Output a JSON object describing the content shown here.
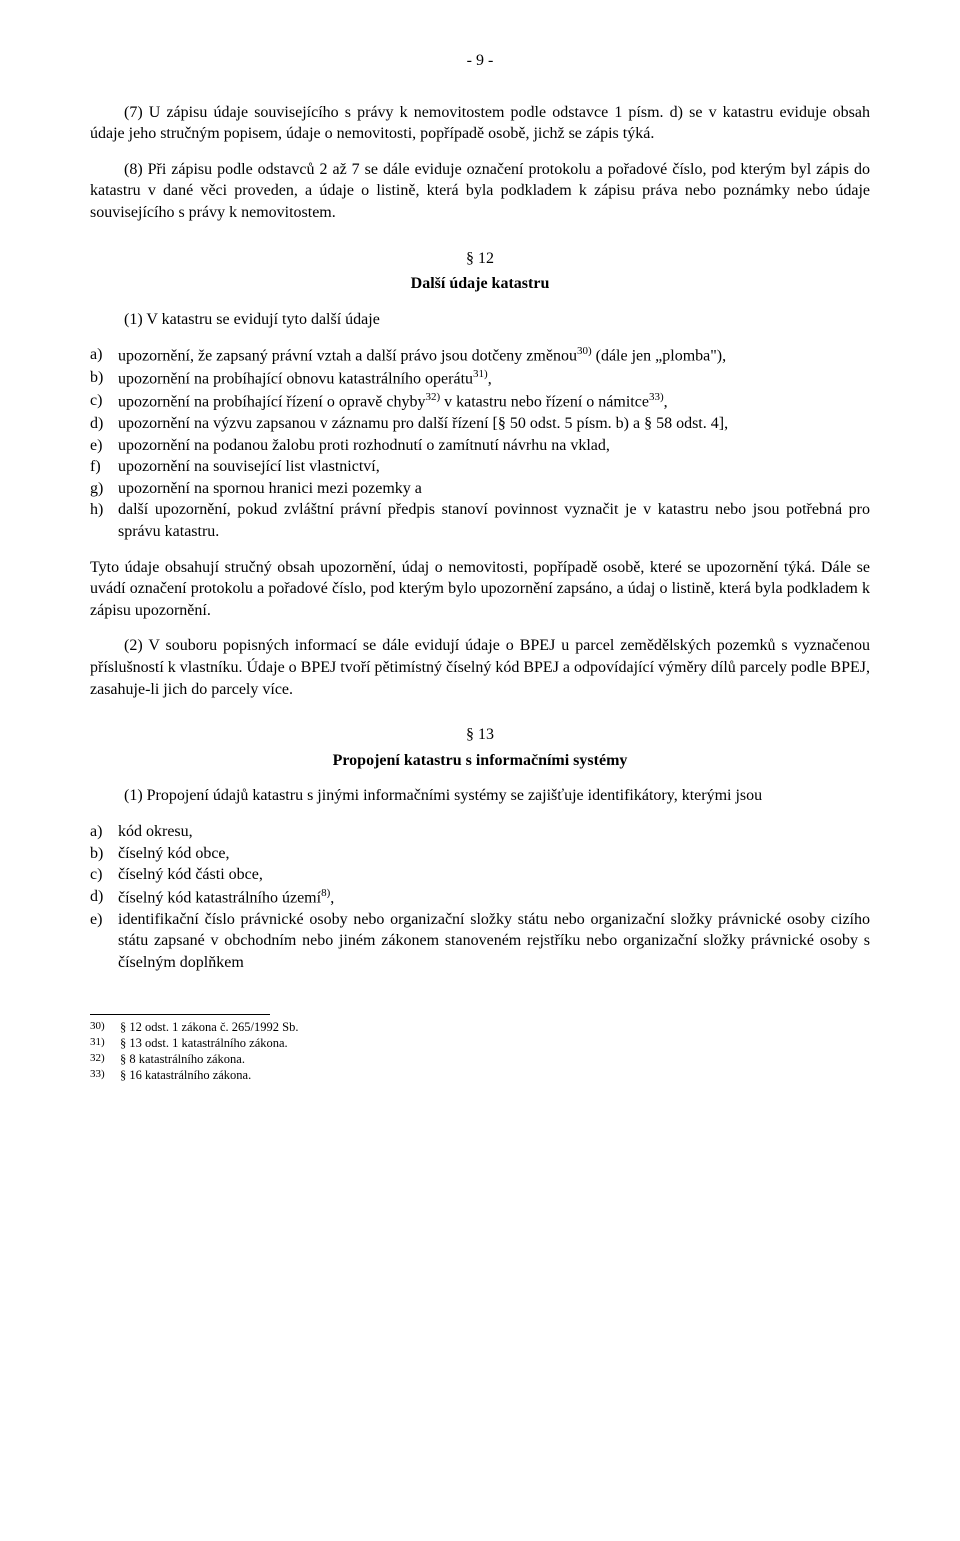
{
  "pageNumber": "- 9 -",
  "para7": "(7) U zápisu údaje souvisejícího s právy k nemovitostem podle odstavce 1 písm. d) se v katastru eviduje obsah údaje jeho stručným popisem, údaje o nemovitosti, popřípadě osobě, jichž se zápis týká.",
  "para8": "(8) Při zápisu podle odstavců 2 až 7 se dále eviduje označení protokolu a pořadové číslo, pod kterým byl zápis do katastru v dané věci proveden, a údaje o listině, která byla podkladem k zápisu práva nebo poznámky nebo údaje souvisejícího s právy k nemovitostem.",
  "s12": {
    "num": "§ 12",
    "title": "Další údaje katastru",
    "intro": "(1) V katastru se evidují tyto další údaje",
    "items": {
      "a": {
        "marker": "a)",
        "pre": "upozornění, že zapsaný právní vztah a další právo jsou dotčeny změnou",
        "sup": "30)",
        "post": " (dále jen „plomba\"),"
      },
      "b": {
        "marker": "b)",
        "pre": "upozornění na probíhající obnovu katastrálního operátu",
        "sup": "31)",
        "post": ","
      },
      "c": {
        "marker": "c)",
        "pre": "upozornění na probíhající řízení o opravě chyby",
        "sup1": "32)",
        "mid": " v katastru nebo řízení o námitce",
        "sup2": "33)",
        "post": ","
      },
      "d": {
        "marker": "d)",
        "text": "upozornění na výzvu zapsanou v záznamu pro další řízení [§ 50 odst. 5 písm. b) a § 58 odst. 4],"
      },
      "e": {
        "marker": "e)",
        "text": "upozornění na podanou žalobu proti rozhodnutí o zamítnutí návrhu na vklad,"
      },
      "f": {
        "marker": "f)",
        "text": "upozornění na související list vlastnictví,"
      },
      "g": {
        "marker": "g)",
        "text": "upozornění na spornou hranici mezi pozemky a"
      },
      "h": {
        "marker": "h)",
        "text": "další upozornění, pokud zvláštní právní předpis stanoví povinnost vyznačit je v katastru nebo jsou potřebná pro správu katastru."
      }
    },
    "tail1": "Tyto údaje obsahují stručný obsah upozornění, údaj o nemovitosti, popřípadě osobě, které se upozornění týká. Dále se uvádí označení protokolu a pořadové číslo, pod kterým bylo upozornění zapsáno, a údaj o listině, která byla podkladem k zápisu upozornění.",
    "para2": "(2) V souboru popisných informací se dále evidují údaje o BPEJ u parcel zemědělských pozemků s vyznačenou příslušností k vlastníku. Údaje o BPEJ tvoří pětimístný číselný kód BPEJ a odpovídající výměry dílů parcely podle BPEJ, zasahuje-li jich do parcely více."
  },
  "s13": {
    "num": "§ 13",
    "title": "Propojení katastru s informačními systémy",
    "intro": "(1) Propojení údajů katastru s jinými informačními systémy se zajišťuje identifikátory, kterými jsou",
    "items": {
      "a": {
        "marker": "a)",
        "text": "kód okresu,"
      },
      "b": {
        "marker": "b)",
        "text": "číselný kód obce,"
      },
      "c": {
        "marker": "c)",
        "text": "číselný kód části obce,"
      },
      "d": {
        "marker": "d)",
        "pre": "číselný kód katastrálního území",
        "sup": "8)",
        "post": ","
      },
      "e": {
        "marker": "e)",
        "text": "identifikační číslo právnické osoby nebo organizační složky státu nebo organizační složky právnické osoby cizího státu zapsané v obchodním nebo jiném zákonem stanoveném rejstříku nebo organizační složky právnické osoby s číselným doplňkem"
      }
    }
  },
  "footnotes": {
    "30": {
      "num": "30)",
      "text": "§ 12 odst. 1 zákona č. 265/1992 Sb."
    },
    "31": {
      "num": "31)",
      "text": "§ 13 odst. 1 katastrálního zákona."
    },
    "32": {
      "num": "32)",
      "text": "§ 8 katastrálního zákona."
    },
    "33": {
      "num": "33)",
      "text": "§ 16 katastrálního zákona."
    }
  }
}
